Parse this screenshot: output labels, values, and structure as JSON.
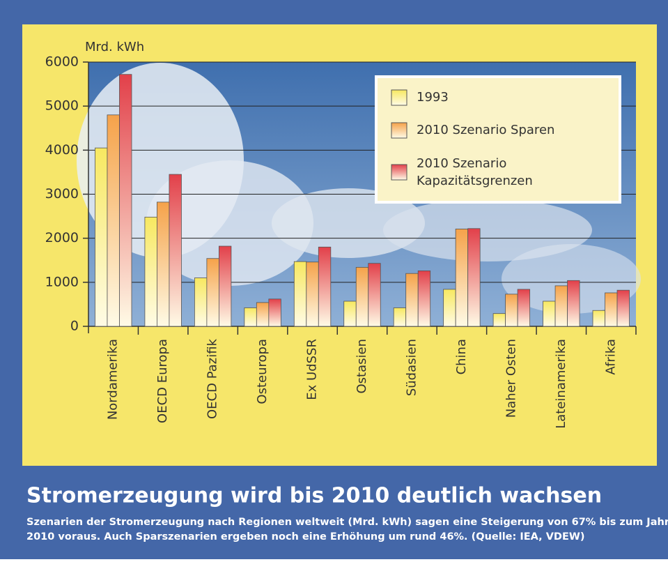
{
  "chart_data": {
    "type": "bar",
    "title": "Stromerzeugung wird bis 2010 deutlich wachsen",
    "caption": [
      "Szenarien der Stromerzeugung nach Regionen weltweit (Mrd. kWh) sagen eine Steigerung von 67% bis zum Jahr",
      "2010 voraus. Auch Sparszenarien ergeben noch eine Erhöhung um rund 46%. (Quelle: IEA, VDEW)"
    ],
    "y_label": "Mrd. kWh",
    "categories": [
      "Nordamerika",
      "OECD Europa",
      "OECD Pazifik",
      "Osteuropa",
      "Ex UdSSR",
      "Ostasien",
      "Südasien",
      "China",
      "Naher Osten",
      "Lateinamerika",
      "Afrika"
    ],
    "series": [
      {
        "name": "1993",
        "color": "#f7e860",
        "values": [
          4050,
          2480,
          1100,
          420,
          1470,
          570,
          420,
          840,
          290,
          570,
          360
        ]
      },
      {
        "name": "2010 Szenario Sparen",
        "color": "#f5a24a",
        "values": [
          4800,
          2820,
          1540,
          540,
          1460,
          1340,
          1200,
          2210,
          730,
          920,
          760
        ]
      },
      {
        "name": "2010 Szenario\nKapazitätsgrenzen",
        "color": "#e2404a",
        "values": [
          5720,
          3450,
          1820,
          620,
          1800,
          1430,
          1260,
          2220,
          840,
          1040,
          820
        ]
      }
    ],
    "ylim": [
      0,
      6000
    ],
    "yticks": [
      0,
      1000,
      2000,
      3000,
      4000,
      5000,
      6000
    ],
    "grid": true,
    "legend": "top-right"
  }
}
